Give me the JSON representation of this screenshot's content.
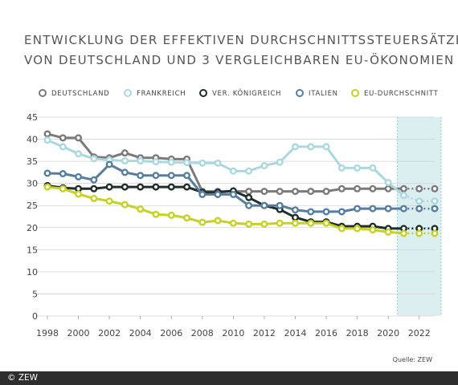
{
  "header": {
    "title_line1": "ENTWICKLUNG DER EFFEKTIVEN DURCHSCHNITTSSTEUERSÄTZE",
    "title_line2": "VON DEUTSCHLAND UND 3 VERGLEICHBAREN EU-ÖKONOMIEN"
  },
  "source": "Quelle: ZEW",
  "copyright": "© ZEW",
  "colors": {
    "deutschland": "#7a7a7a",
    "frankreich": "#a9d9df",
    "koenigreich": "#1f2d2b",
    "italien": "#567ea1",
    "eu": "#c5d21f",
    "forecast_band": "#dbeff1",
    "grid": "#d3d3d3"
  },
  "chart_data": {
    "type": "line",
    "x": [
      1998,
      1999,
      2000,
      2001,
      2002,
      2003,
      2004,
      2005,
      2006,
      2007,
      2008,
      2009,
      2010,
      2011,
      2012,
      2013,
      2014,
      2015,
      2016,
      2017,
      2018,
      2019,
      2020,
      2021,
      2022,
      2023
    ],
    "xticks": [
      "1998",
      "2000",
      "2002",
      "2004",
      "2006",
      "2008",
      "2010",
      "2012",
      "2014",
      "2016",
      "2018",
      "2020",
      "2022"
    ],
    "yticks": [
      "0",
      "5",
      "10",
      "15",
      "20",
      "25",
      "30",
      "35",
      "40",
      "45"
    ],
    "ylim": [
      0,
      45
    ],
    "xlim": [
      1998,
      2023
    ],
    "grid": true,
    "forecast_years": [
      2021,
      2022,
      2023
    ],
    "legend_position": "top",
    "series": [
      {
        "name": "DEUTSCHLAND",
        "key": "deutschland",
        "values": [
          41.2,
          40.3,
          40.3,
          36.0,
          35.8,
          36.9,
          35.8,
          35.8,
          35.5,
          35.5,
          28.2,
          28.2,
          28.2,
          28.2,
          28.2,
          28.2,
          28.2,
          28.2,
          28.2,
          28.8,
          28.8,
          28.8,
          28.8,
          28.8,
          28.8,
          28.8
        ]
      },
      {
        "name": "FRANKREICH",
        "key": "frankreich",
        "values": [
          39.8,
          38.3,
          36.7,
          35.6,
          35.3,
          35.1,
          35.1,
          34.9,
          34.8,
          34.7,
          34.6,
          34.6,
          32.8,
          32.8,
          34.0,
          34.8,
          38.3,
          38.3,
          38.3,
          33.5,
          33.5,
          33.5,
          30.2,
          27.3,
          26.0,
          26.0
        ]
      },
      {
        "name": "VER. KÖNIGREICH",
        "key": "koenigreich",
        "values": [
          29.5,
          29.0,
          28.8,
          28.8,
          29.2,
          29.2,
          29.2,
          29.2,
          29.2,
          29.2,
          28.0,
          28.0,
          28.3,
          26.8,
          25.0,
          24.1,
          22.3,
          21.3,
          21.3,
          20.3,
          20.3,
          20.3,
          19.8,
          19.8,
          19.8,
          19.8
        ]
      },
      {
        "name": "ITALIEN",
        "key": "italien",
        "values": [
          32.3,
          32.2,
          31.5,
          30.8,
          34.3,
          32.5,
          31.8,
          31.8,
          31.8,
          31.8,
          27.5,
          27.5,
          27.5,
          25.0,
          25.0,
          25.0,
          24.0,
          23.6,
          23.6,
          23.6,
          24.3,
          24.3,
          24.3,
          24.3,
          24.3,
          24.3
        ]
      },
      {
        "name": "EU-DURCHSCHNITT",
        "key": "eu",
        "values": [
          29.2,
          28.8,
          27.6,
          26.6,
          26.0,
          25.2,
          24.2,
          23.0,
          22.8,
          22.2,
          21.2,
          21.6,
          21.0,
          20.8,
          20.8,
          21.0,
          21.0,
          21.0,
          21.0,
          19.8,
          19.8,
          19.5,
          19.0,
          18.7,
          18.7,
          18.7
        ]
      }
    ]
  }
}
